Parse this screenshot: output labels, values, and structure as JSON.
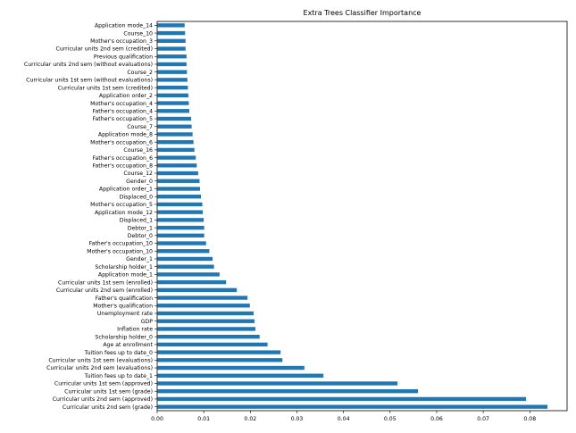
{
  "chart_data": {
    "type": "bar",
    "orientation": "horizontal",
    "title": "Extra Trees Classifier Importance",
    "xlabel": "",
    "ylabel": "",
    "xlim": [
      0,
      0.088
    ],
    "xticks": [
      "0.00",
      "0.01",
      "0.02",
      "0.03",
      "0.04",
      "0.05",
      "0.06",
      "0.07",
      "0.08"
    ],
    "grid": false,
    "legend": "none",
    "bar_color": "#1f77b4",
    "categories": [
      "Application mode_14",
      "Course_10",
      "Mother's occupation_3",
      "Curricular units 2nd sem (credited)",
      "Previous qualification",
      "Curricular units 2nd sem (without evaluations)",
      "Course_2",
      "Curricular units 1st sem (without evaluations)",
      "Curricular units 1st sem (credited)",
      "Application order_2",
      "Mother's occupation_4",
      "Father's occupation_4",
      "Father's occupation_5",
      "Course_7",
      "Application mode_8",
      "Mother's occupation_6",
      "Course_16",
      "Father's occupation_6",
      "Father's occupation_8",
      "Course_12",
      "Gender_0",
      "Application order_1",
      "Displaced_0",
      "Mother's occupation_5",
      "Application mode_12",
      "Displaced_1",
      "Debtor_1",
      "Debtor_0",
      "Father's occupation_10",
      "Mother's occupation_10",
      "Gender_1",
      "Scholarship holder_1",
      "Application mode_1",
      "Curricular units 1st sem (enrolled)",
      "Curricular units 2nd sem (enrolled)",
      "Father's qualification",
      "Mother's qualification",
      "Unemployment rate",
      "GDP",
      "Inflation rate",
      "Scholarship holder_0",
      "Age at enrollment",
      "Tuition fees up to date_0",
      "Curricular units 1st sem (evaluations)",
      "Curricular units 2nd sem (evaluations)",
      "Tuition fees up to date_1",
      "Curricular units 1st sem (approved)",
      "Curricular units 1st sem (grade)",
      "Curricular units 2nd sem (approved)",
      "Curricular units 2nd sem (grade)"
    ],
    "values": [
      0.0058,
      0.0059,
      0.006,
      0.006,
      0.0062,
      0.0062,
      0.0063,
      0.0064,
      0.0065,
      0.0066,
      0.0067,
      0.0068,
      0.0072,
      0.0073,
      0.0075,
      0.0077,
      0.0079,
      0.0082,
      0.0084,
      0.0087,
      0.009,
      0.0091,
      0.0093,
      0.0096,
      0.0097,
      0.0099,
      0.01,
      0.01,
      0.0104,
      0.0111,
      0.0118,
      0.0121,
      0.0133,
      0.0147,
      0.017,
      0.0193,
      0.0198,
      0.0206,
      0.0208,
      0.021,
      0.0219,
      0.0236,
      0.0264,
      0.0268,
      0.0315,
      0.0356,
      0.0515,
      0.0559,
      0.0791,
      0.0837
    ]
  }
}
